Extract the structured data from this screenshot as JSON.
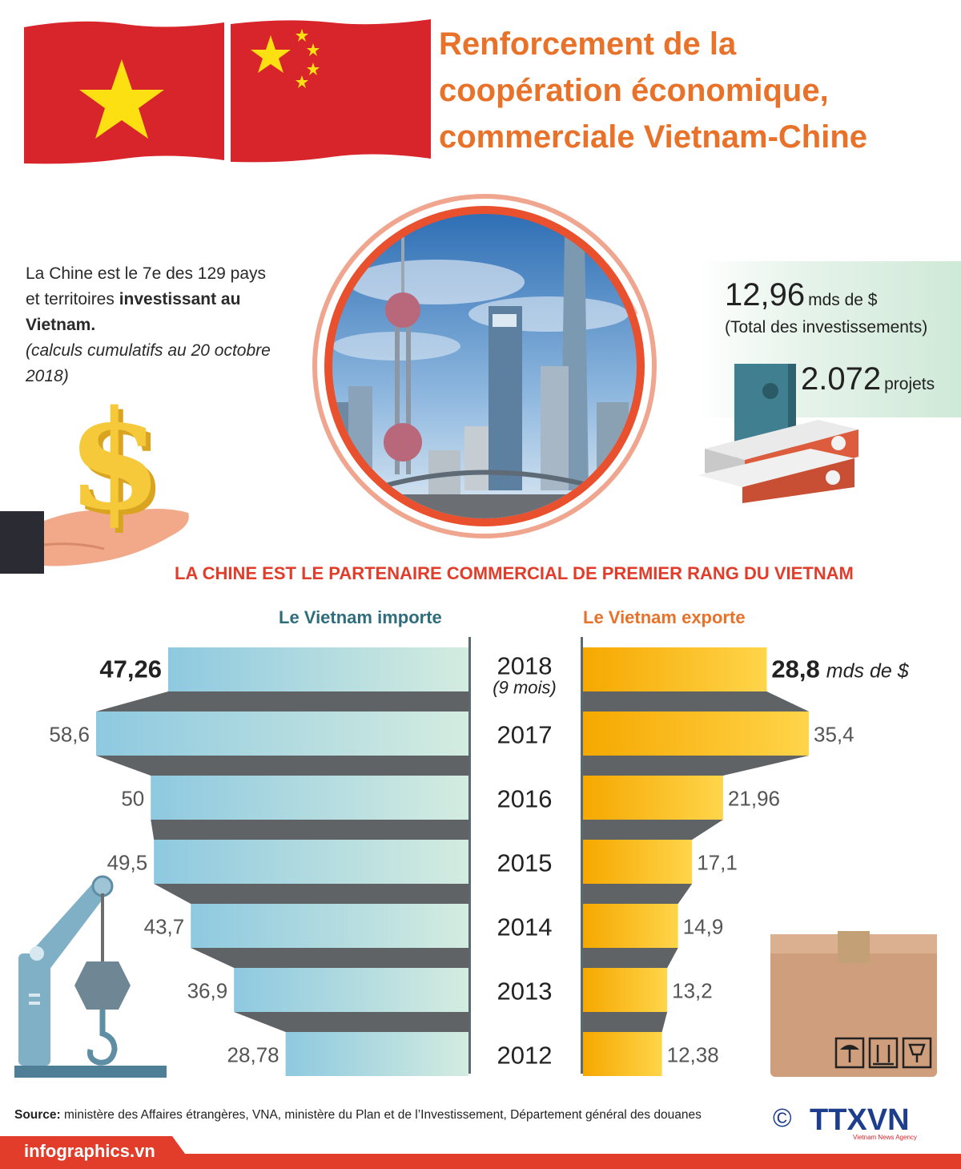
{
  "header": {
    "title_lines": [
      "Renforcement de la",
      "coopération économique,",
      "commerciale Vietnam-Chine"
    ]
  },
  "intro": {
    "line1": "La Chine est le 7e des 129 pays",
    "line2_plain": "et territoires ",
    "line2_bold": "investissant au",
    "line3_bold": "Vietnam.",
    "note": "(calculs cumulatifs au 20 octobre 2018)"
  },
  "investment": {
    "total_value": "12,96",
    "total_unit": "mds de $",
    "total_label": "(Total des investissements)",
    "projects_value": "2.072",
    "projects_unit": "projets"
  },
  "subheading": "LA CHINE EST LE PARTENAIRE COMMERCIAL DE PREMIER RANG  DU VIETNAM",
  "columns": {
    "imports": "Le Vietnam importe",
    "exports": "Le Vietnam exporte"
  },
  "chart_data": {
    "type": "bar",
    "categories": [
      "2018",
      "2017",
      "2016",
      "2015",
      "2014",
      "2013",
      "2012"
    ],
    "category_notes": {
      "2018": "(9 mois)"
    },
    "series": [
      {
        "name": "Le Vietnam importe",
        "values": [
          47.26,
          58.6,
          50,
          49.5,
          43.7,
          36.9,
          28.78
        ],
        "labels": [
          "47,26",
          "58,6",
          "50",
          "49,5",
          "43,7",
          "36,9",
          "28,78"
        ]
      },
      {
        "name": "Le Vietnam exporte",
        "values": [
          28.8,
          35.4,
          21.96,
          17.1,
          14.9,
          13.2,
          12.38
        ],
        "labels": [
          "28,8",
          "35,4",
          "21,96",
          "17,1",
          "14,9",
          "13,2",
          "12,38"
        ]
      }
    ],
    "unit_label": "mds de $",
    "colors": {
      "imports_start": "#8ec9e0",
      "imports_end": "#d4ece0",
      "exports_start": "#f6a800",
      "exports_end": "#ffd54a",
      "connector": "#5f6366"
    }
  },
  "source": {
    "label": "Source:",
    "text": " ministère des Affaires étrangères, VNA, ministère du Plan et de l’Investissement, Département général des douanes"
  },
  "logo": {
    "copyright": "©",
    "name": "TTXVN",
    "tagline": "Vietnam News Agency"
  },
  "footer": {
    "site": "infographics.vn"
  }
}
